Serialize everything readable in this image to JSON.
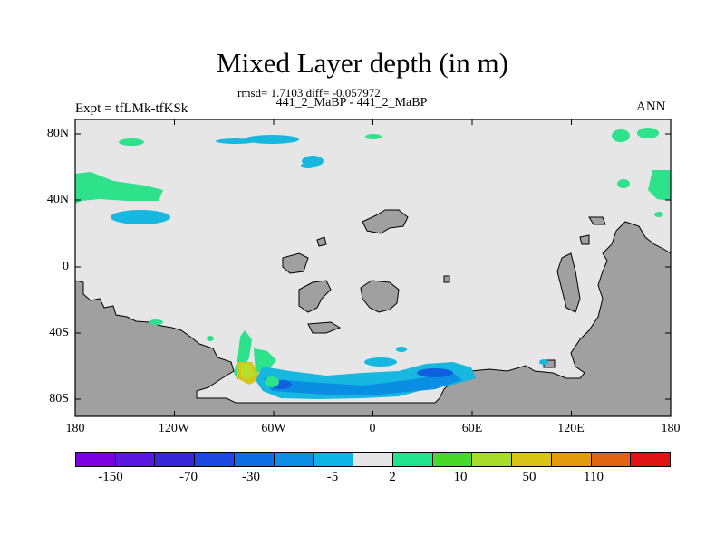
{
  "header": {
    "title": "Mixed Layer depth (in m)",
    "stats": "rmsd= 1.7103 diff= -0.057972",
    "case_pair": "441_2_MaBP - 441_2_MaBP",
    "experiment": "Expt = tfLMk-tfKSk",
    "season": "ANN"
  },
  "axes": {
    "y_ticks": [
      "80N",
      "40N",
      "0",
      "40S",
      "80S"
    ],
    "x_ticks": [
      "180",
      "120W",
      "60W",
      "0",
      "60E",
      "120E",
      "180"
    ]
  },
  "colors": {
    "land": "#a0a0a0",
    "background": "#e6e6e6",
    "green": "#2de28a",
    "cyan": "#16b8e0",
    "light_blue": "#0a8ee2",
    "blue": "#0f5fe0",
    "yellow_green": "#b6de2a",
    "gold": "#d8c414"
  },
  "colorbar": {
    "colors": [
      "#7a00e0",
      "#5a18e0",
      "#3a28d8",
      "#1f48e0",
      "#0f6ee6",
      "#0c8ee6",
      "#0fb4e6",
      "#e6e6e6",
      "#22e28e",
      "#48d82a",
      "#a8dc2a",
      "#d8c414",
      "#e09a0c",
      "#e06414",
      "#e01414"
    ],
    "labels": [
      "-150",
      "-70",
      "-30",
      "-5",
      "2",
      "10",
      "50",
      "110"
    ]
  }
}
